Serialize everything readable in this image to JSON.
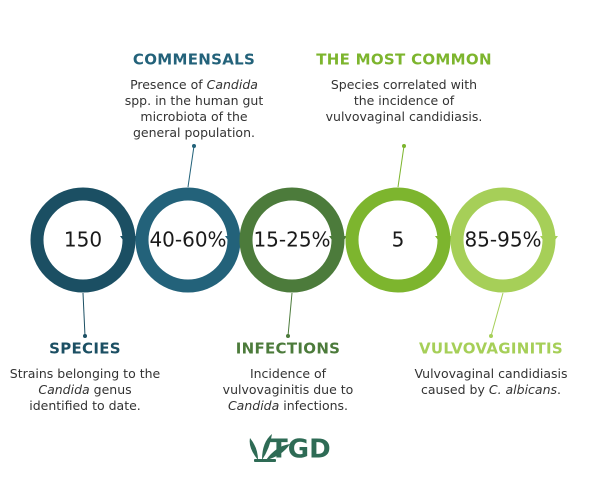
{
  "items": [
    {
      "value": "150",
      "heading": "SPECIES",
      "color": "#1b4f63",
      "description": [
        [
          "Strains belonging to the"
        ],
        [
          {
            "text": "Candida",
            "italic": true
          },
          " genus"
        ],
        [
          "identified to date."
        ]
      ]
    },
    {
      "value": "40-60%",
      "heading": "COMMENSALS",
      "color": "#23627a",
      "description": [
        [
          "Presence of ",
          {
            "text": "Candida",
            "italic": true
          }
        ],
        [
          "spp. in the human gut"
        ],
        [
          "microbiota of the"
        ],
        [
          "general population."
        ]
      ]
    },
    {
      "value": "15-25%",
      "heading": "INFECTIONS",
      "color": "#4c7b3b",
      "description": [
        [
          "Incidence of"
        ],
        [
          "vulvovaginitis due to"
        ],
        [
          {
            "text": "Candida",
            "italic": true
          },
          " infections."
        ]
      ]
    },
    {
      "value": "5",
      "heading": "THE MOST COMMON",
      "color": "#7db52e",
      "description": [
        [
          "Species correlated with"
        ],
        [
          "the incidence of"
        ],
        [
          "vulvovaginal candidiasis."
        ]
      ]
    },
    {
      "value": "85-95%",
      "heading": "VULVOVAGINITIS",
      "color": "#a6cf58",
      "description": [
        [
          "Vulvovaginal candidiasis"
        ],
        [
          "caused by ",
          {
            "text": "C. albicans",
            "italic": true
          },
          "."
        ]
      ]
    }
  ],
  "logo": "TGD"
}
